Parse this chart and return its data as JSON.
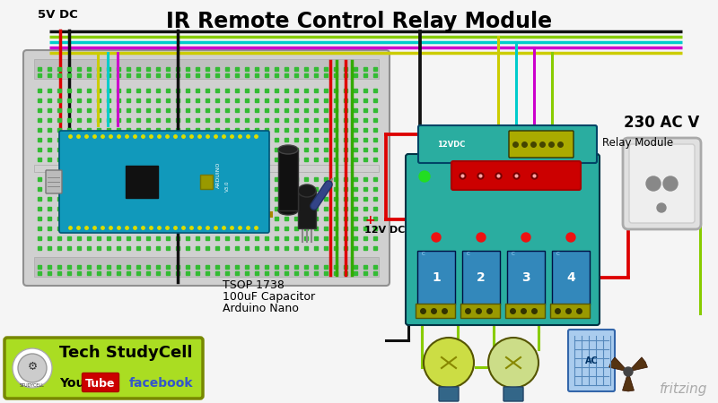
{
  "title": "IR Remote Control Relay Module",
  "title_fontsize": 17,
  "title_fontweight": "bold",
  "bg_color": "#f5f5f5",
  "label_5v": "5V DC",
  "label_12v": "12V DC",
  "label_230v": "230 AC V",
  "label_relay": "Relay Module",
  "label_tsop": "TSOP 1738",
  "label_cap": "100uF Capacitor",
  "label_arduino": "Arduino Nano",
  "label_tech": "Tech StudyCell",
  "label_facebook": "facebook",
  "fritzing_text": "fritzing",
  "wire_black": "#111111",
  "wire_red": "#dd0000",
  "wire_yellow": "#cccc00",
  "wire_cyan": "#00cccc",
  "wire_magenta": "#cc00cc",
  "wire_lime": "#88cc00",
  "wire_green": "#33aa00",
  "breadboard_color": "#d0d0d0",
  "breadboard_border": "#909090",
  "arduino_color": "#1199bb",
  "relay_board_color": "#2aada0",
  "socket_color": "#e8e8e8",
  "logo_bg": "#aadd22",
  "logo_border": "#778800"
}
